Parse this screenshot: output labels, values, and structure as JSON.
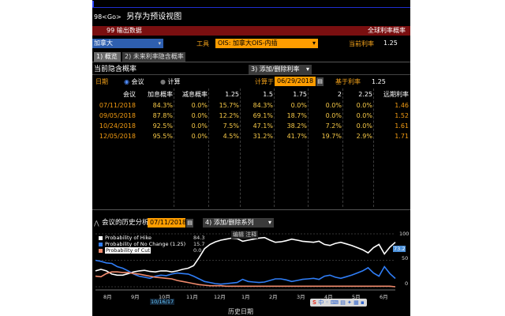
{
  "window": {
    "title_prefix": "98<Go>",
    "title": "另存为预设视图"
  },
  "header": {
    "export_label": "99 输出数据",
    "global_rates_label": "全球利率概率"
  },
  "selector": {
    "country_value": "加拿大",
    "tool_label": "工具",
    "tool_value": "OIS: 加拿大OIS-内插",
    "current_rate_label": "当前利率",
    "current_rate_value": "1.25"
  },
  "tabs": [
    {
      "label": "1) 概览"
    },
    {
      "label": "2) 未来利率隐含概率"
    }
  ],
  "section": {
    "title": "当前隐含概率",
    "add_remove_label": "3) 添加/删除利率",
    "date_label": "日期",
    "radio_meeting": "会议",
    "radio_calc": "计算",
    "calc_date_label": "计算于",
    "calc_date_value": "06/29/2018",
    "base_rate_label": "基于利率",
    "base_rate_value": "1.25"
  },
  "table": {
    "columns": [
      "会议",
      "加息概率",
      "减息概率",
      "1.25",
      "1.5",
      "1.75",
      "2",
      "2.25",
      "远期利率"
    ],
    "rows": [
      [
        "07/11/2018",
        "84.3%",
        "0.0%",
        "15.7%",
        "84.3%",
        "0.0%",
        "0.0%",
        "0.0%",
        "1.46"
      ],
      [
        "09/05/2018",
        "87.8%",
        "0.0%",
        "12.2%",
        "69.1%",
        "18.7%",
        "0.0%",
        "0.0%",
        "1.52"
      ],
      [
        "10/24/2018",
        "92.5%",
        "0.0%",
        "7.5%",
        "47.1%",
        "38.2%",
        "7.2%",
        "0.0%",
        "1.61"
      ],
      [
        "12/05/2018",
        "95.5%",
        "0.0%",
        "4.5%",
        "31.2%",
        "41.7%",
        "19.7%",
        "2.9%",
        "1.71"
      ]
    ]
  },
  "history": {
    "title": "会议的历史分析",
    "date_value": "07/11/2018",
    "add_remove_series": "4) 添加/删除系列",
    "overlay_text": "编辑",
    "overlay_text2": "注释"
  },
  "chart_data": {
    "type": "line",
    "xlabel": "历史日期",
    "x_ticks": [
      "8月",
      "9月",
      "10月",
      "11月",
      "12月",
      "1月",
      "2月",
      "3月",
      "4月",
      "5月",
      "6月"
    ],
    "x_extra_label": "10/16/17",
    "y_ticks": [
      "100",
      "50",
      "0"
    ],
    "ylim": [
      0,
      100
    ],
    "right_marker": "73.2",
    "series": [
      {
        "name": "Probability of Hike",
        "last": "84.3",
        "color": "#ffffff",
        "values": [
          30,
          33,
          30,
          24,
          22,
          22,
          25,
          28,
          30,
          31,
          29,
          28,
          30,
          30,
          28,
          30,
          33,
          35,
          40,
          55,
          72,
          80,
          85,
          88,
          90,
          92,
          91,
          86,
          88,
          90,
          92,
          93,
          88,
          84,
          85,
          87,
          90,
          88,
          86,
          85,
          84,
          86,
          80,
          78,
          82,
          84,
          81,
          78,
          74,
          70,
          64,
          74,
          80,
          62,
          75,
          84
        ]
      },
      {
        "name": "Probability of No Change (1.25)",
        "last": "15.7",
        "color": "#2f7df6",
        "values": [
          50,
          48,
          45,
          44,
          38,
          35,
          30,
          24,
          20,
          18,
          16,
          20,
          22,
          21,
          24,
          26,
          25,
          24,
          20,
          15,
          10,
          8,
          6,
          5,
          6,
          7,
          8,
          14,
          10,
          9,
          8,
          9,
          12,
          15,
          15,
          13,
          10,
          12,
          14,
          15,
          16,
          14,
          20,
          22,
          18,
          16,
          19,
          22,
          26,
          30,
          36,
          26,
          20,
          38,
          25,
          15.7
        ]
      },
      {
        "name": "Probability of Cut",
        "last": "0.0",
        "color": "#f08a6c",
        "values": [
          20,
          19,
          25,
          28,
          28,
          27,
          27,
          25,
          24,
          22,
          20,
          18,
          17,
          16,
          15,
          12,
          10,
          8,
          6,
          4,
          3,
          2,
          2,
          2,
          1,
          1,
          1,
          1,
          1,
          1,
          1,
          1,
          1,
          1,
          1,
          1,
          1,
          1,
          1,
          1,
          1,
          1,
          1,
          1,
          1,
          1,
          1,
          1,
          1,
          1,
          1,
          1,
          1,
          1,
          1,
          0
        ]
      }
    ]
  }
}
